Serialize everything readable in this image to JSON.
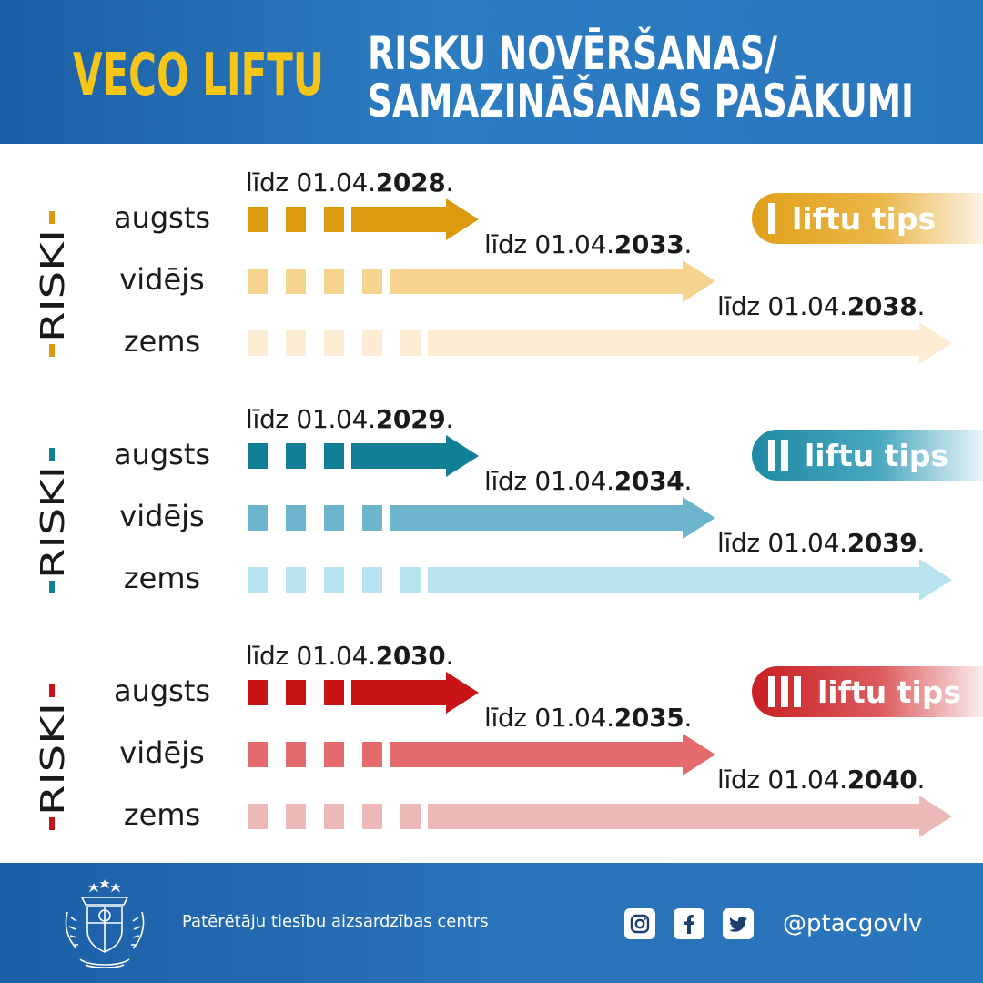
{
  "header": {
    "title_left": "VECO LIFTU",
    "title_right_line1": "RISKU NOVĒRŠANAS/",
    "title_right_line2": "SAMAZINĀŠANAS PASĀKUMI",
    "colors": {
      "background": "#1c5fa6",
      "left_title": "#f5c518",
      "right_title": "#ffffff"
    }
  },
  "sections": [
    {
      "risk_label": "RISKI",
      "type_label": "liftu tips",
      "type_roman": "I",
      "color": "#dc9a0e",
      "levels": [
        {
          "label": "augsts",
          "deadline_prefix": "līdz 01.04.",
          "deadline_year": "2028",
          "deadline_suffix": "."
        },
        {
          "label": "vidējs",
          "deadline_prefix": "līdz 01.04.",
          "deadline_year": "2033",
          "deadline_suffix": "."
        },
        {
          "label": "zems",
          "deadline_prefix": "līdz 01.04.",
          "deadline_year": "2038",
          "deadline_suffix": "."
        }
      ]
    },
    {
      "risk_label": "RISKI",
      "type_label": "liftu tips",
      "type_roman": "II",
      "color": "#117f96",
      "levels": [
        {
          "label": "augsts",
          "deadline_prefix": "līdz 01.04.",
          "deadline_year": "2029",
          "deadline_suffix": "."
        },
        {
          "label": "vidējs",
          "deadline_prefix": "līdz 01.04.",
          "deadline_year": "2034",
          "deadline_suffix": "."
        },
        {
          "label": "zems",
          "deadline_prefix": "līdz 01.04.",
          "deadline_year": "2039",
          "deadline_suffix": "."
        }
      ]
    },
    {
      "risk_label": "RISKI",
      "type_label": "liftu tips",
      "type_roman": "III",
      "color": "#c81417",
      "levels": [
        {
          "label": "augsts",
          "deadline_prefix": "līdz 01.04.",
          "deadline_year": "2030",
          "deadline_suffix": "."
        },
        {
          "label": "vidējs",
          "deadline_prefix": "līdz 01.04.",
          "deadline_year": "2035",
          "deadline_suffix": "."
        },
        {
          "label": "zems",
          "deadline_prefix": "līdz 01.04.",
          "deadline_year": "2040",
          "deadline_suffix": "."
        }
      ]
    }
  ],
  "arrow_colors": [
    [
      "#dc9a0e",
      "#f5d490",
      "#fbecd3"
    ],
    [
      "#117f96",
      "#6cb5cc",
      "#b8e4f0"
    ],
    [
      "#c81417",
      "#e46a6c",
      "#ecb8b8"
    ]
  ],
  "footer": {
    "organization": "Patērētāju tiesību aizsardzības centrs",
    "handle": "@ptacgovlv",
    "icons": [
      "instagram-icon",
      "facebook-icon",
      "twitter-icon"
    ],
    "background": "#1c5fa6"
  }
}
